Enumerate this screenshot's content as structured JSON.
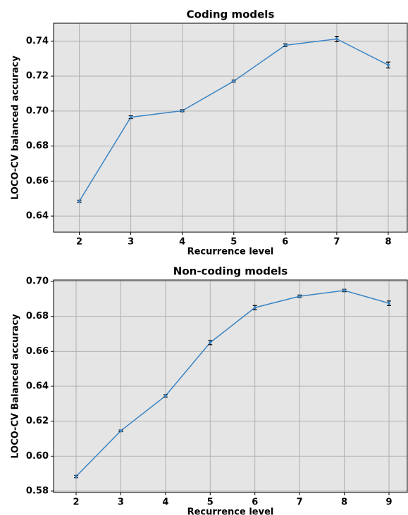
{
  "chart_data": [
    {
      "type": "line",
      "title": "Coding models",
      "x_label": "Recurrence level",
      "y_label": "LOCO-CV balanced accuracy",
      "x": [
        2,
        3,
        4,
        5,
        6,
        7,
        8
      ],
      "series": [
        {
          "color": "#3b84c4",
          "values": [
            0.6485,
            0.6965,
            0.7002,
            0.7171,
            0.7376,
            0.7412,
            0.7263
          ],
          "errors": [
            0.0006,
            0.0008,
            0.0006,
            0.0006,
            0.0008,
            0.0015,
            0.0017
          ]
        }
      ],
      "xlim": [
        1.5,
        8.37
      ],
      "ylim": [
        0.6308,
        0.7502
      ],
      "xticks": [
        2,
        3,
        4,
        5,
        6,
        7,
        8
      ],
      "yticks": [
        {
          "value": 0.64,
          "label": "0.64"
        },
        {
          "value": 0.66,
          "label": "0.66"
        },
        {
          "value": 0.68,
          "label": "0.68"
        },
        {
          "value": 0.7,
          "label": "0.70"
        },
        {
          "value": 0.72,
          "label": "0.72"
        },
        {
          "value": 0.74,
          "label": "0.74"
        }
      ],
      "grid": true
    },
    {
      "type": "line",
      "title": "Non-coding models",
      "x_label": "Recurrence level",
      "y_label": "LOCO-CV Balanced accuracy",
      "x": [
        2,
        3,
        4,
        5,
        6,
        7,
        8,
        9
      ],
      "series": [
        {
          "color": "#3b84c4",
          "values": [
            0.5884,
            0.6145,
            0.6345,
            0.665,
            0.685,
            0.6915,
            0.6948,
            0.6875
          ],
          "errors": [
            0.0007,
            0.0005,
            0.0007,
            0.0012,
            0.0012,
            0.0007,
            0.0007,
            0.0013
          ]
        }
      ],
      "xlim": [
        1.495,
        9.41
      ],
      "ylim": [
        0.5792,
        0.7008
      ],
      "xticks": [
        2,
        3,
        4,
        5,
        6,
        7,
        8,
        9
      ],
      "yticks": [
        {
          "value": 0.58,
          "label": "0.58"
        },
        {
          "value": 0.6,
          "label": "0.60"
        },
        {
          "value": 0.62,
          "label": "0.62"
        },
        {
          "value": 0.64,
          "label": "0.64"
        },
        {
          "value": 0.66,
          "label": "0.66"
        },
        {
          "value": 0.68,
          "label": "0.68"
        },
        {
          "value": 0.7,
          "label": "0.70"
        }
      ],
      "grid": true
    }
  ]
}
